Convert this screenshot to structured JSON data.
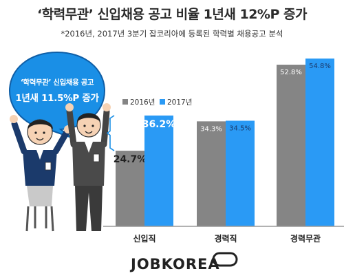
{
  "title": "‘학력무관’ 신입채용 공고 비율 1년새 12%P 증가",
  "subtitle": "*2016년, 2017년 3분기 잡코리아에 등록된 학력별 채용공고 분석",
  "bubble": {
    "line1": "‘학력무관’ 신입채용 공고",
    "line2": "1년새 11.5%P 증가",
    "color": "#1a8fe6"
  },
  "logo": "JOBKOREA",
  "colors": {
    "s2016": "#858585",
    "s2017": "#2a9af5",
    "bracket": "#1a8fe6"
  },
  "chart_data": {
    "type": "bar",
    "categories": [
      "신입직",
      "경력직",
      "경력무관"
    ],
    "series": [
      {
        "name": "2016년",
        "values": [
          24.7,
          34.3,
          52.8
        ]
      },
      {
        "name": "2017년",
        "values": [
          36.2,
          34.5,
          54.8
        ]
      }
    ],
    "data_labels": [
      [
        "24.7%",
        "34.3%",
        "52.8%"
      ],
      [
        "36.2%",
        "34.5%",
        "54.8%"
      ]
    ],
    "legend": [
      "2016년",
      "2017년"
    ],
    "legend_position": "top-left",
    "grid": false
  }
}
